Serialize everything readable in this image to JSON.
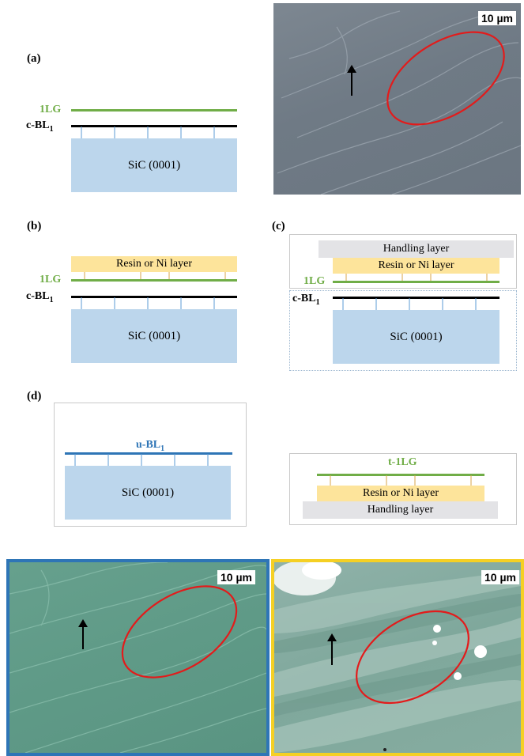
{
  "panels": {
    "a": {
      "label": "(a)",
      "top_layer": "1LG",
      "buffer": "c-BL",
      "buffer_sub": "1",
      "substrate": "SiC (0001)",
      "micrograph_scale": "10 µm"
    },
    "b": {
      "label": "(b)",
      "coating": "Resin or Ni layer",
      "top_layer": "1LG",
      "buffer": "c-BL",
      "buffer_sub": "1",
      "substrate": "SiC (0001)"
    },
    "c": {
      "label": "(c)",
      "handling": "Handling layer",
      "coating": "Resin or Ni layer",
      "top_layer": "1LG",
      "buffer": "c-BL",
      "buffer_sub": "1",
      "substrate": "SiC (0001)"
    },
    "d": {
      "label": "(d)",
      "left": {
        "buffer": "u-BL",
        "buffer_sub": "1",
        "substrate": "SiC (0001)"
      },
      "right": {
        "top_layer": "t-1LG",
        "coating": "Resin or Ni layer",
        "handling": "Handling layer"
      }
    },
    "bottom": {
      "left_scale": "10 µm",
      "right_scale": "10 µm"
    }
  },
  "colors": {
    "graphene": "#70ad47",
    "buffer": "#000000",
    "buffer_u": "#2e75b6",
    "substrate": "#bcd6ec",
    "resin": "#fde49b",
    "handling": "#e3e3e6",
    "circle": "#e31b1b",
    "frame_blue": "#2e75b6",
    "frame_yellow": "#f5d024"
  }
}
